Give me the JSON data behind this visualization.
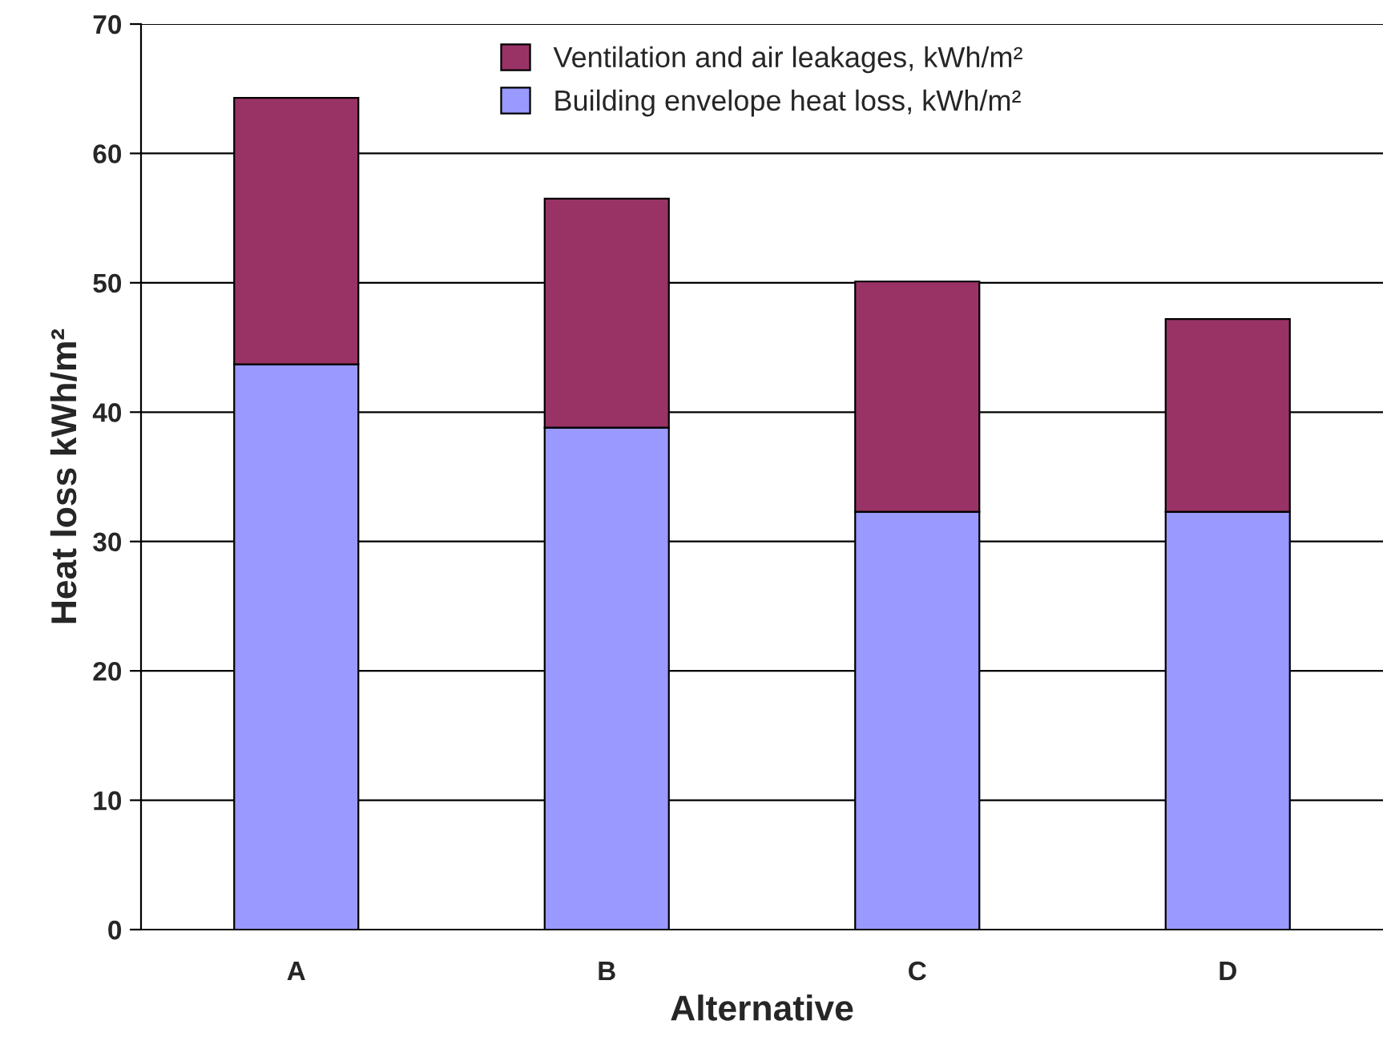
{
  "chart_data": {
    "type": "bar",
    "stacked": true,
    "xlabel": "Alternative",
    "ylabel": "Heat loss kWh/m²",
    "categories": [
      "A",
      "B",
      "C",
      "D"
    ],
    "series": [
      {
        "name": "Building envelope heat loss, kWh/m²",
        "color": "#9999ff",
        "values": [
          43.7,
          38.8,
          32.3,
          32.3
        ]
      },
      {
        "name": "Ventilation and air leakages, kWh/m²",
        "color": "#993366",
        "values": [
          20.6,
          17.7,
          17.8,
          14.9
        ]
      }
    ],
    "ylim": [
      0,
      70
    ],
    "yticks": [
      0,
      10,
      20,
      30,
      40,
      50,
      60,
      70
    ],
    "grid": "y",
    "legend": "top"
  }
}
